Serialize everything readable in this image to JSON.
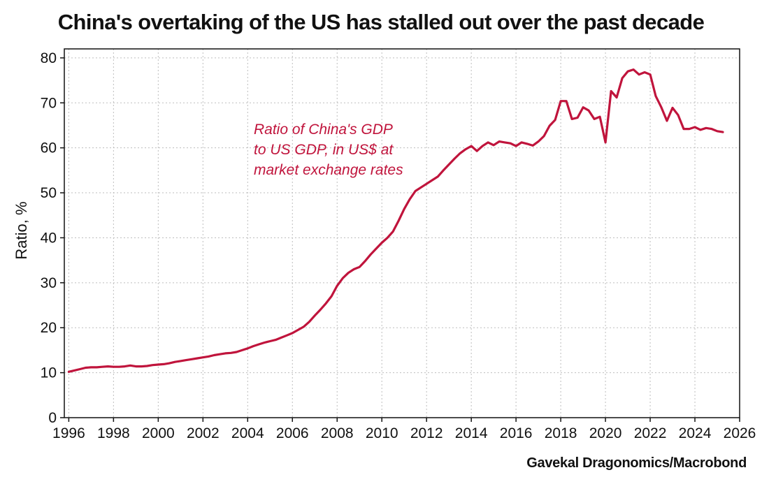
{
  "chart_data": {
    "type": "line",
    "title": "China's overtaking of the US has stalled out over the past decade",
    "xlabel": "",
    "ylabel": "Ratio, %",
    "xlim": [
      1995.8,
      2026
    ],
    "ylim": [
      0,
      82
    ],
    "x_ticks": [
      1996,
      1998,
      2000,
      2002,
      2004,
      2006,
      2008,
      2010,
      2012,
      2014,
      2016,
      2018,
      2020,
      2022,
      2024,
      2026
    ],
    "y_ticks": [
      0,
      10,
      20,
      30,
      40,
      50,
      60,
      70,
      80
    ],
    "grid": true,
    "line_color": "#c0143c",
    "annotation": [
      "Ratio of China's GDP",
      "to US GDP, in US$ at",
      "market exchange rates"
    ],
    "source": "Gavekal Dragonomics/Macrobond",
    "series": [
      {
        "x": [
          1996.0,
          1996.25,
          1996.5,
          1996.75,
          1997.0,
          1997.25,
          1997.5,
          1997.75,
          1998.0,
          1998.25,
          1998.5,
          1998.75,
          1999.0,
          1999.25,
          1999.5,
          1999.75,
          2000.0,
          2000.25,
          2000.5,
          2000.75,
          2001.0,
          2001.25,
          2001.5,
          2001.75,
          2002.0,
          2002.25,
          2002.5,
          2002.75,
          2003.0,
          2003.25,
          2003.5,
          2003.75,
          2004.0,
          2004.25,
          2004.5,
          2004.75,
          2005.0,
          2005.25,
          2005.5,
          2005.75,
          2006.0,
          2006.25,
          2006.5,
          2006.75,
          2007.0,
          2007.25,
          2007.5,
          2007.75,
          2008.0,
          2008.25,
          2008.5,
          2008.75,
          2009.0,
          2009.25,
          2009.5,
          2009.75,
          2010.0,
          2010.25,
          2010.5,
          2010.75,
          2011.0,
          2011.25,
          2011.5,
          2011.75,
          2012.0,
          2012.25,
          2012.5,
          2012.75,
          2013.0,
          2013.25,
          2013.5,
          2013.75,
          2014.0,
          2014.25,
          2014.5,
          2014.75,
          2015.0,
          2015.25,
          2015.5,
          2015.75,
          2016.0,
          2016.25,
          2016.5,
          2016.75,
          2017.0,
          2017.25,
          2017.5,
          2017.75,
          2018.0,
          2018.25,
          2018.5,
          2018.75,
          2019.0,
          2019.25,
          2019.5,
          2019.75,
          2020.0,
          2020.25,
          2020.5,
          2020.75,
          2021.0,
          2021.25,
          2021.5,
          2021.75,
          2022.0,
          2022.25,
          2022.5,
          2022.75,
          2023.0,
          2023.25,
          2023.5,
          2023.75,
          2024.0,
          2024.25,
          2024.5,
          2024.75,
          2025.0,
          2025.25
        ],
        "values": [
          10.2,
          10.5,
          10.8,
          11.1,
          11.2,
          11.2,
          11.3,
          11.4,
          11.3,
          11.3,
          11.4,
          11.6,
          11.4,
          11.4,
          11.5,
          11.7,
          11.8,
          11.9,
          12.1,
          12.4,
          12.6,
          12.8,
          13.0,
          13.2,
          13.4,
          13.6,
          13.9,
          14.1,
          14.3,
          14.4,
          14.6,
          15.0,
          15.4,
          15.9,
          16.3,
          16.7,
          17.0,
          17.3,
          17.8,
          18.3,
          18.8,
          19.5,
          20.2,
          21.3,
          22.7,
          24.0,
          25.4,
          27.0,
          29.3,
          31.0,
          32.2,
          33.0,
          33.5,
          34.8,
          36.3,
          37.6,
          38.9,
          40.0,
          41.4,
          43.8,
          46.4,
          48.6,
          50.4,
          51.2,
          52.0,
          52.8,
          53.6,
          55.0,
          56.3,
          57.6,
          58.8,
          59.7,
          60.4,
          59.3,
          60.4,
          61.2,
          60.6,
          61.4,
          61.2,
          61.0,
          60.4,
          61.2,
          60.9,
          60.5,
          61.4,
          62.6,
          64.9,
          66.2,
          70.4,
          70.4,
          66.4,
          66.7,
          69.0,
          68.3,
          66.4,
          66.9,
          61.2,
          72.6,
          71.2,
          75.5,
          77.0,
          77.4,
          76.3,
          76.8,
          76.3,
          71.5,
          69.0,
          66.0,
          68.9,
          67.3,
          64.2,
          64.2,
          64.6,
          64.0,
          64.4,
          64.2,
          63.7,
          63.5
        ]
      }
    ]
  }
}
